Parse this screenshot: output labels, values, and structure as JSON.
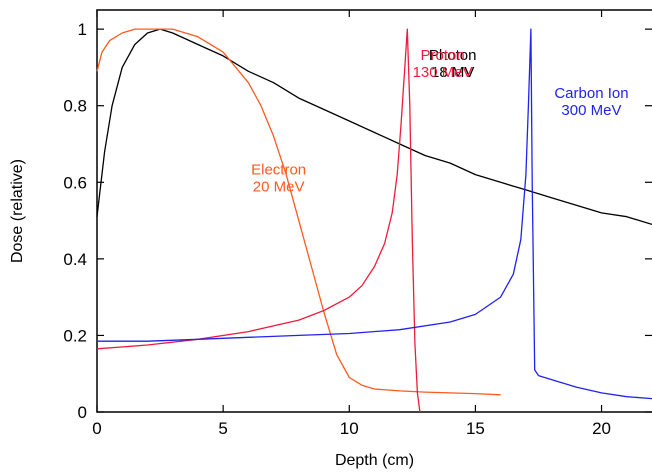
{
  "chart_data": {
    "type": "line",
    "title": "",
    "xlabel": "Depth (cm)",
    "ylabel": "Dose (relative)",
    "xlim": [
      0,
      22
    ],
    "ylim": [
      0,
      1.05
    ],
    "xticks": [
      0,
      5,
      10,
      15,
      20
    ],
    "yticks": [
      0,
      0.2,
      0.4,
      0.6,
      0.8,
      1
    ],
    "xtick_labels": [
      "0",
      "5",
      "10",
      "15",
      "20"
    ],
    "ytick_labels": [
      "0",
      "0.2",
      "0.4",
      "0.6",
      "0.8",
      "1"
    ],
    "grid": false,
    "legend": "none",
    "series": [
      {
        "label_lines": [
          "Photon",
          "18 MV"
        ],
        "color": "#000000",
        "x": [
          0,
          0.3,
          0.6,
          1,
          1.5,
          2,
          2.5,
          3,
          4,
          5,
          6,
          7,
          8,
          9,
          10,
          11,
          12,
          13,
          14,
          15,
          16,
          17,
          18,
          19,
          20,
          21,
          22
        ],
        "y": [
          0.51,
          0.68,
          0.8,
          0.9,
          0.96,
          0.99,
          1.0,
          0.99,
          0.96,
          0.93,
          0.89,
          0.86,
          0.82,
          0.79,
          0.76,
          0.73,
          0.7,
          0.67,
          0.65,
          0.62,
          0.6,
          0.58,
          0.56,
          0.54,
          0.52,
          0.51,
          0.49
        ]
      },
      {
        "label_lines": [
          "Electron",
          "20 MeV"
        ],
        "color": "#ff5a1f",
        "x": [
          0,
          0.2,
          0.5,
          1,
          1.5,
          2,
          2.5,
          3,
          4,
          5,
          6,
          6.5,
          7,
          7.5,
          8,
          8.5,
          9,
          9.5,
          10,
          10.5,
          11,
          12,
          13,
          14,
          15,
          16
        ],
        "y": [
          0.89,
          0.94,
          0.97,
          0.99,
          1.0,
          1.0,
          1.0,
          1.0,
          0.98,
          0.94,
          0.86,
          0.8,
          0.72,
          0.62,
          0.5,
          0.38,
          0.26,
          0.15,
          0.09,
          0.07,
          0.06,
          0.055,
          0.052,
          0.05,
          0.048,
          0.045
        ]
      },
      {
        "label_lines": [
          "Proton",
          "130 MeV"
        ],
        "color": "#ee1c3c",
        "x": [
          0,
          2,
          4,
          6,
          8,
          9,
          10,
          10.5,
          11,
          11.4,
          11.7,
          11.9,
          12.05,
          12.2,
          12.3,
          12.4,
          12.5,
          12.6,
          12.7,
          12.8
        ],
        "y": [
          0.165,
          0.175,
          0.19,
          0.21,
          0.24,
          0.265,
          0.3,
          0.33,
          0.38,
          0.44,
          0.52,
          0.62,
          0.75,
          0.9,
          1.0,
          0.8,
          0.45,
          0.18,
          0.05,
          0.0
        ]
      },
      {
        "label_lines": [
          "Carbon Ion",
          "300 MeV"
        ],
        "color": "#2222ee",
        "x": [
          0,
          2,
          4,
          6,
          8,
          10,
          12,
          14,
          15,
          16,
          16.5,
          16.8,
          17.0,
          17.1,
          17.2,
          17.25,
          17.35,
          17.5,
          18,
          19,
          20,
          21,
          22
        ],
        "y": [
          0.185,
          0.185,
          0.19,
          0.195,
          0.2,
          0.205,
          0.215,
          0.235,
          0.255,
          0.3,
          0.36,
          0.45,
          0.62,
          0.8,
          1.0,
          0.6,
          0.11,
          0.095,
          0.085,
          0.065,
          0.05,
          0.04,
          0.035
        ]
      }
    ]
  }
}
